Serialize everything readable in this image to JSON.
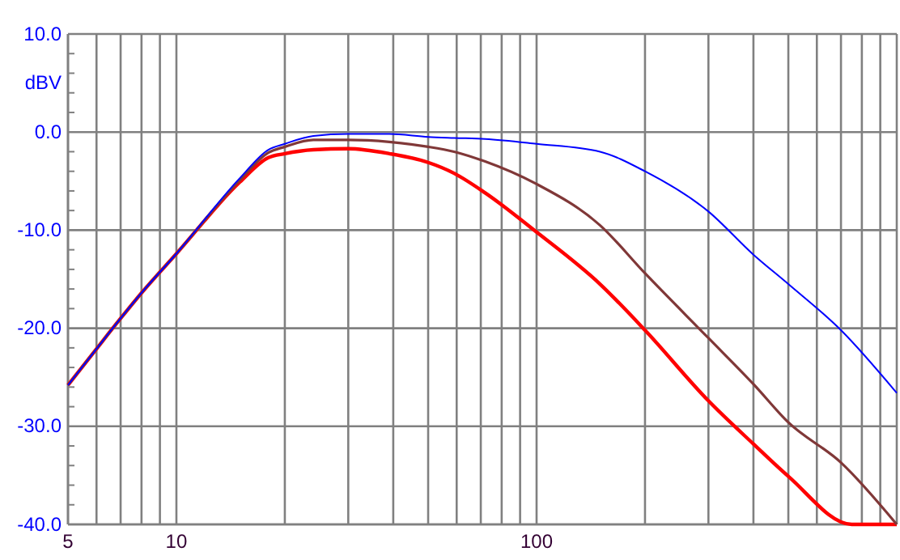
{
  "chart_data": {
    "type": "line",
    "ylabel": "dBV",
    "log": "x",
    "grid": true,
    "line_style": "solid",
    "marker": "none",
    "x": [
      5,
      6,
      7,
      8,
      10,
      15,
      18,
      20,
      24,
      30,
      39,
      50,
      59,
      72,
      100,
      150,
      200,
      300,
      400,
      500,
      700,
      1000
    ],
    "xlim": [
      5,
      1000
    ],
    "xticks": [
      5,
      {
        "value": 6,
        "label": null
      },
      {
        "value": 7,
        "label": null
      },
      {
        "value": 8,
        "label": null
      },
      {
        "value": 9,
        "label": null
      },
      10,
      {
        "value": 20,
        "label": null
      },
      {
        "value": 30,
        "label": null
      },
      {
        "value": 40,
        "label": null
      },
      {
        "value": 50,
        "label": null
      },
      {
        "value": 60,
        "label": null
      },
      {
        "value": 70,
        "label": null
      },
      {
        "value": 80,
        "label": null
      },
      {
        "value": 90,
        "label": null
      },
      100,
      {
        "value": 200,
        "label": null
      },
      {
        "value": 300,
        "label": null
      },
      {
        "value": 400,
        "label": null
      },
      {
        "value": 500,
        "label": null
      },
      {
        "value": 600,
        "label": null
      },
      {
        "value": 700,
        "label": null
      },
      {
        "value": 800,
        "label": null
      },
      {
        "value": 900,
        "label": null
      },
      {
        "value": 1000,
        "label": null
      }
    ],
    "ylim": [
      -40,
      10
    ],
    "yticks": [
      {
        "value": -40,
        "label": "-40.0"
      },
      {
        "value": -30,
        "label": "-30.0"
      },
      {
        "value": -20,
        "label": "-20.0"
      },
      {
        "value": -10,
        "label": "-10.0"
      },
      {
        "value": 0,
        "label": "0.0"
      },
      {
        "value": 10,
        "label": "10.0"
      }
    ],
    "series": [
      {
        "color": "#0000ff",
        "values": [
          -25.8,
          -22.1,
          -19.0,
          -16.4,
          -12.4,
          -4.7,
          -1.8,
          -1.2,
          -0.4,
          -0.2,
          -0.2,
          -0.5,
          -0.6,
          -0.7,
          -1.2,
          -2.0,
          -4.0,
          -8.1,
          -12.5,
          -15.5,
          -20.2,
          -26.6
        ]
      },
      {
        "color": "#803838",
        "values": [
          -25.8,
          -22.1,
          -19.0,
          -16.4,
          -12.4,
          -4.9,
          -2.1,
          -1.5,
          -0.8,
          -0.8,
          -1.0,
          -1.5,
          -2.0,
          -3.0,
          -5.3,
          -9.5,
          -14.4,
          -21.0,
          -25.7,
          -29.6,
          -33.7,
          -40
        ]
      },
      {
        "color": "#ff0000",
        "x": [
          5,
          6,
          7,
          8,
          10,
          15,
          18,
          20,
          24,
          30,
          39,
          50,
          59,
          72,
          100,
          150,
          200,
          300,
          400,
          500,
          750,
          1000
        ],
        "values": [
          -25.8,
          -22.1,
          -19.0,
          -16.4,
          -12.4,
          -5.1,
          -2.6,
          -2.2,
          -1.8,
          -1.7,
          -2.2,
          -3.1,
          -4.2,
          -6.2,
          -10.2,
          -15.5,
          -20.2,
          -27.4,
          -31.8,
          -35.1,
          -40,
          -40
        ]
      }
    ]
  }
}
